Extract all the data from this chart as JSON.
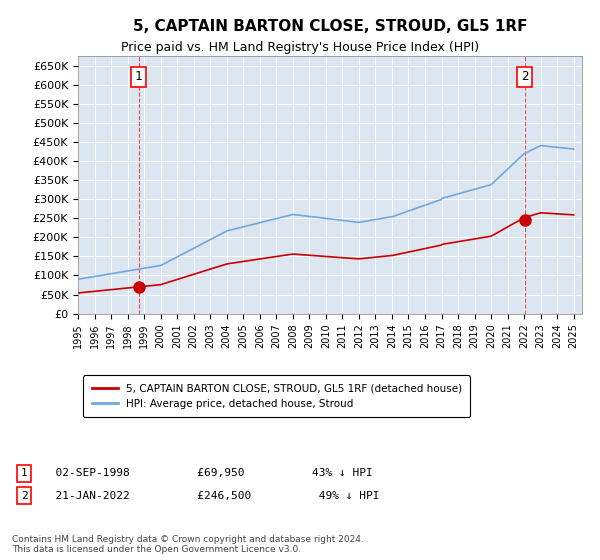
{
  "title": "5, CAPTAIN BARTON CLOSE, STROUD, GL5 1RF",
  "subtitle": "Price paid vs. HM Land Registry's House Price Index (HPI)",
  "ylim": [
    0,
    675000
  ],
  "yticks": [
    0,
    50000,
    100000,
    150000,
    200000,
    250000,
    300000,
    350000,
    400000,
    450000,
    500000,
    550000,
    600000,
    650000
  ],
  "plot_bg": "#dce6f1",
  "sale1": {
    "date_num": 1998.67,
    "price": 69950,
    "label": "1",
    "date_str": "02-SEP-1998",
    "hpi_pct": "43% ↓ HPI"
  },
  "sale2": {
    "date_num": 2022.05,
    "price": 246500,
    "label": "2",
    "date_str": "21-JAN-2022",
    "hpi_pct": "49% ↓ HPI"
  },
  "legend_property": "5, CAPTAIN BARTON CLOSE, STROUD, GL5 1RF (detached house)",
  "legend_hpi": "HPI: Average price, detached house, Stroud",
  "footnote": "Contains HM Land Registry data © Crown copyright and database right 2024.\nThis data is licensed under the Open Government Licence v3.0.",
  "hpi_color": "#6fa8dc",
  "sale_color": "#cc0000"
}
